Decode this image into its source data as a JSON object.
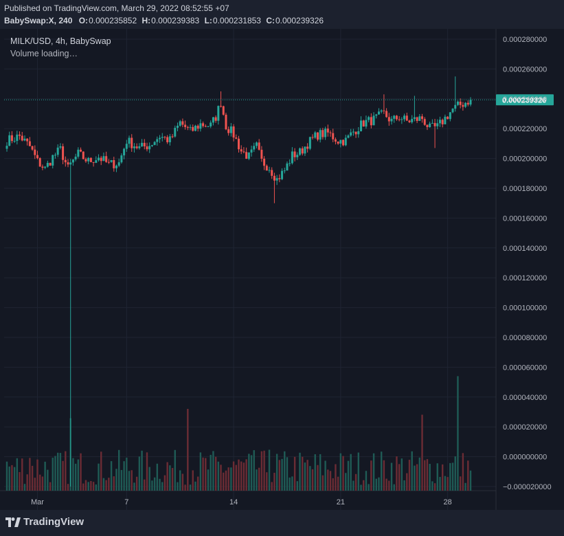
{
  "header": {
    "published": "Published on TradingView.com, March 29, 2022 08:52:55 +07",
    "symbol_interval": "BabySwap:X, 240",
    "ohlc": [
      {
        "key": "O:",
        "value": "0.000235852"
      },
      {
        "key": "H:",
        "value": "0.000239383"
      },
      {
        "key": "L:",
        "value": "0.000231853"
      },
      {
        "key": "C:",
        "value": "0.000239326"
      }
    ]
  },
  "legend": {
    "title": "MILK/USD, 4h, BabySwap",
    "volume_status": "Volume loading…"
  },
  "brand": {
    "name": "TradingView"
  },
  "colors": {
    "background": "#141823",
    "grid": "#1f2433",
    "up": "#26a69a",
    "down": "#ef5350",
    "volume_up": "#1f5b55",
    "volume_down": "#6b2c34",
    "price_label_bg": "#26a69a",
    "text": "#d1d4dc"
  },
  "chart_data": {
    "type": "candlestick",
    "title": "",
    "xlabel": "",
    "ylabel": "",
    "ylim": [
      -2e-05,
      0.00028
    ],
    "y_ticks": [
      "0.000280000",
      "0.000260000",
      "0.000240000",
      "0.000220000",
      "0.000200000",
      "0.000180000",
      "0.000160000",
      "0.000140000",
      "0.000120000",
      "0.000100000",
      "0.000080000",
      "0.000060000",
      "0.000040000",
      "0.000020000",
      "0.000000000",
      "−0.000020000"
    ],
    "y_tick_values": [
      0.00028,
      0.00026,
      0.00024,
      0.00022,
      0.0002,
      0.00018,
      0.00016,
      0.00014,
      0.00012,
      0.0001,
      8e-05,
      6e-05,
      4e-05,
      2e-05,
      0,
      -2e-05
    ],
    "x_ticks": [
      {
        "label": "Mar",
        "bar": 12
      },
      {
        "label": "7",
        "bar": 47
      },
      {
        "label": "14",
        "bar": 89
      },
      {
        "label": "21",
        "bar": 131
      },
      {
        "label": "28",
        "bar": 173
      }
    ],
    "last_price": 0.000239326,
    "last_price_label": "0.000239326",
    "bar_count": 183,
    "grid": true,
    "anchors": [
      [
        0,
        0.000212
      ],
      [
        5,
        0.000215
      ],
      [
        9,
        0.000208
      ],
      [
        12,
        0.000198
      ],
      [
        15,
        0.000193
      ],
      [
        18,
        0.000201
      ],
      [
        21,
        0.000206
      ],
      [
        24,
        0.000193
      ],
      [
        25,
        0.000196
      ],
      [
        28,
        0.000203
      ],
      [
        32,
        0.000198
      ],
      [
        36,
        0.000201
      ],
      [
        40,
        0.000196
      ],
      [
        44,
        0.000197
      ],
      [
        47,
        0.000212
      ],
      [
        52,
        0.000207
      ],
      [
        56,
        0.000209
      ],
      [
        60,
        0.000215
      ],
      [
        64,
        0.000212
      ],
      [
        68,
        0.000224
      ],
      [
        72,
        0.000218
      ],
      [
        76,
        0.000223
      ],
      [
        80,
        0.000222
      ],
      [
        82,
        0.000228
      ],
      [
        84,
        0.000238
      ],
      [
        86,
        0.000222
      ],
      [
        89,
        0.000216
      ],
      [
        92,
        0.000205
      ],
      [
        95,
        0.000201
      ],
      [
        98,
        0.000208
      ],
      [
        100,
        0.000198
      ],
      [
        103,
        0.000194
      ],
      [
        106,
        0.000186
      ],
      [
        109,
        0.000192
      ],
      [
        112,
        0.000202
      ],
      [
        115,
        0.000204
      ],
      [
        118,
        0.00021
      ],
      [
        122,
        0.000216
      ],
      [
        126,
        0.000217
      ],
      [
        130,
        0.000212
      ],
      [
        133,
        0.000212
      ],
      [
        136,
        0.000218
      ],
      [
        140,
        0.000224
      ],
      [
        144,
        0.000226
      ],
      [
        148,
        0.00023
      ],
      [
        151,
        0.000225
      ],
      [
        154,
        0.000228
      ],
      [
        157,
        0.000225
      ],
      [
        160,
        0.000226
      ],
      [
        163,
        0.000227
      ],
      [
        166,
        0.00022
      ],
      [
        169,
        0.000221
      ],
      [
        172,
        0.000227
      ],
      [
        175,
        0.000233
      ],
      [
        178,
        0.000236
      ],
      [
        182,
        0.000239326
      ]
    ],
    "spikes": [
      {
        "bar": 25,
        "low": -2e-05
      },
      {
        "bar": 84,
        "high": 0.000245
      },
      {
        "bar": 105,
        "low": 0.00017
      },
      {
        "bar": 148,
        "high": 0.000243
      },
      {
        "bar": 160,
        "high": 0.000242
      },
      {
        "bar": 168,
        "low": 0.000207
      },
      {
        "bar": 176,
        "high": 0.000255
      }
    ],
    "volume_spikes": [
      {
        "bar": 9,
        "h": 0.28
      },
      {
        "bar": 25,
        "h": 0.62
      },
      {
        "bar": 71,
        "h": 0.7
      },
      {
        "bar": 89,
        "h": 0.25
      },
      {
        "bar": 103,
        "h": 0.35
      },
      {
        "bar": 163,
        "h": 0.65
      },
      {
        "bar": 177,
        "h": 0.98
      }
    ]
  }
}
